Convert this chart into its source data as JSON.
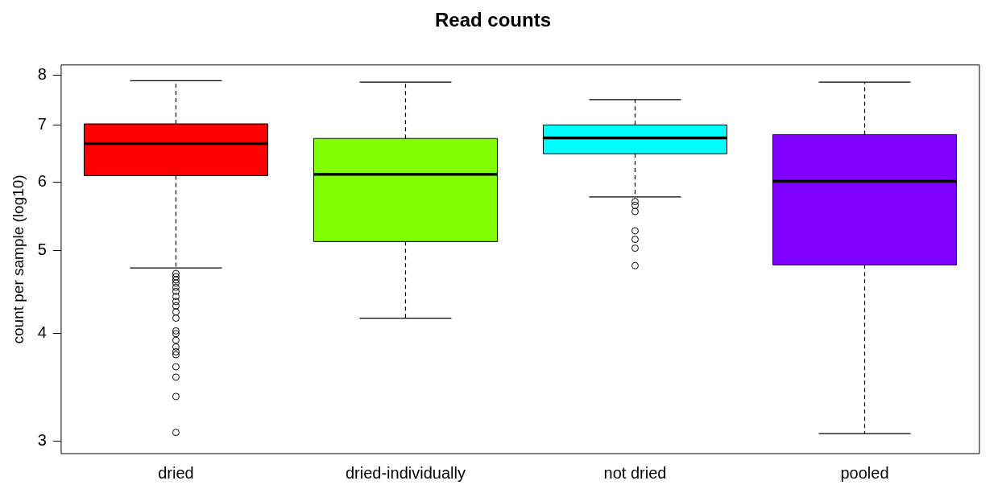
{
  "chart_data": {
    "type": "box",
    "title": "Read counts",
    "ylabel": "count per sample (log10)",
    "log": true,
    "grid": false,
    "legend": false,
    "categories": [
      "dried",
      "dried-individually",
      "not dried",
      "pooled"
    ],
    "colors": [
      "#ff0000",
      "#7fff00",
      "#00ffff",
      "#8000ff"
    ],
    "ylim": [
      2.9,
      8.22
    ],
    "yticks": [
      3,
      4,
      5,
      6,
      7,
      8
    ],
    "boxes": [
      {
        "low": 4.77,
        "q1": 6.11,
        "median": 6.66,
        "q3": 7.02,
        "high": 7.88,
        "outliers": [
          4.7,
          4.66,
          4.62,
          4.58,
          4.53,
          4.48,
          4.42,
          4.36,
          4.31,
          4.24,
          4.17,
          4.03,
          4.0,
          3.93,
          3.86,
          3.81,
          3.78,
          3.66,
          3.56,
          3.38,
          3.07
        ]
      },
      {
        "low": 4.17,
        "q1": 5.12,
        "median": 6.13,
        "q3": 6.75,
        "high": 7.85
      },
      {
        "low": 5.77,
        "q1": 6.48,
        "median": 6.76,
        "q3": 7.0,
        "high": 7.49,
        "outliers": [
          5.7,
          5.64,
          5.55,
          5.27,
          5.15,
          5.03,
          4.8
        ]
      },
      {
        "low": 3.06,
        "q1": 4.81,
        "median": 6.02,
        "q3": 6.82,
        "high": 7.85
      }
    ]
  }
}
